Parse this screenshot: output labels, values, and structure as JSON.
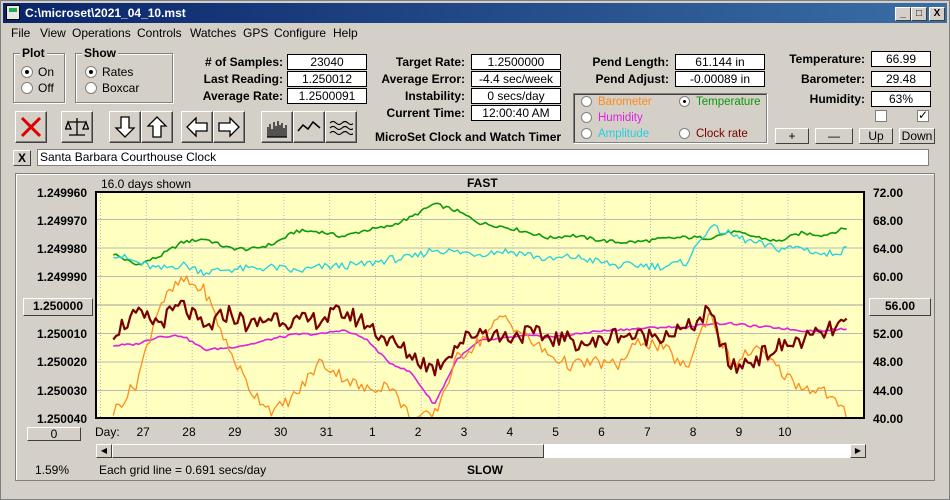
{
  "window": {
    "title": "C:\\microset\\2021_04_10.mst"
  },
  "titlebar_buttons": {
    "minimize": "_",
    "maximize": "□",
    "close": "X"
  },
  "menu": [
    "File",
    "View",
    "Operations",
    "Controls",
    "Watches",
    "GPS",
    "Configure",
    "Help"
  ],
  "plot_group": {
    "title": "Plot",
    "options": [
      "On",
      "Off"
    ],
    "selected": "On"
  },
  "show_group": {
    "title": "Show",
    "options": [
      "Rates",
      "Boxcar"
    ],
    "selected": "Rates"
  },
  "stats": {
    "samples_label": "# of Samples:",
    "samples": "23040",
    "last_reading_label": "Last Reading:",
    "last_reading": "1.250012",
    "avg_rate_label": "Average Rate:",
    "avg_rate": "1.2500091",
    "target_rate_label": "Target Rate:",
    "target_rate": "1.2500000",
    "avg_error_label": "Average Error:",
    "avg_error": "-4.4 sec/week",
    "instability_label": "Instability:",
    "instability": "0 secs/day",
    "current_time_label": "Current Time:",
    "current_time": "12:00:40 AM",
    "pend_length_label": "Pend Length:",
    "pend_length": "61.144 in",
    "pend_adjust_label": "Pend Adjust:",
    "pend_adjust": "-0.00089 in",
    "temperature_label": "Temperature:",
    "temperature": "66.99",
    "barometer_label": "Barometer:",
    "barometer": "29.48",
    "humidity_label": "Humidity:",
    "humidity": "63%"
  },
  "app_heading": "MicroSet Clock and Watch Timer",
  "params": [
    {
      "label": "Barometer",
      "color": "#ff8c1a",
      "selected": false
    },
    {
      "label": "Temperature",
      "color": "#0a9a0a",
      "selected": true
    },
    {
      "label": "Humidity",
      "color": "#e020e0",
      "selected": false
    },
    {
      "label": "Amplitude",
      "color": "#20d0e0",
      "selected": false
    },
    {
      "label": "Clock rate",
      "color": "#7a0000",
      "selected": false
    }
  ],
  "step_buttons": {
    "plus": "+",
    "minus": "—",
    "up": "Up",
    "down": "Down"
  },
  "checkboxes": {
    "left_checked": false,
    "right_checked": true
  },
  "clock_name": "Santa Barbara Courthouse Clock",
  "close_x": "X",
  "chart_labels": {
    "days_shown": "16.0 days shown",
    "top": "FAST",
    "bottom": "SLOW",
    "grid_note": "Each grid line = 0.691 secs/day",
    "day_prefix": "Day:",
    "left_button": "1.250000",
    "right_button": "56.00",
    "bottom_left_button": "0",
    "percent": "1.59%"
  },
  "chart_data": {
    "type": "line",
    "x_label": "Day",
    "x_ticks": [
      "27",
      "28",
      "29",
      "30",
      "31",
      "1",
      "2",
      "3",
      "4",
      "5",
      "6",
      "7",
      "8",
      "9",
      "10"
    ],
    "y_left_ticks": [
      "1.249960",
      "1.249970",
      "1.249980",
      "1.249990",
      "1.250000",
      "1.250010",
      "1.250020",
      "1.250030",
      "1.250040"
    ],
    "y_right_ticks": [
      "72.00",
      "68.00",
      "64.00",
      "60.00",
      "56.00",
      "52.00",
      "48.00",
      "44.00",
      "40.00"
    ],
    "ylim_left": [
      1.24996,
      1.25004
    ],
    "ylim_right": [
      40,
      72
    ],
    "y_left_inverted": true,
    "grid": true,
    "x_start_day_index": 0,
    "series": [
      {
        "name": "Temperature",
        "color": "#0a9a0a",
        "x": [
          0,
          0.5,
          1,
          1.5,
          2,
          2.5,
          3,
          3.5,
          4,
          4.5,
          5,
          5.5,
          6,
          6.5,
          7,
          7.5,
          8,
          8.5,
          9,
          9.5,
          10,
          10.5,
          11,
          11.5,
          12,
          12.5,
          13,
          13.5,
          14,
          14.5,
          15,
          15.5,
          16
        ],
        "values": [
          63.2,
          61.6,
          62.8,
          64.8,
          65.3,
          64.0,
          63.8,
          64.6,
          66.4,
          66.3,
          65.6,
          66.5,
          67.0,
          68.3,
          70.2,
          69.2,
          67.5,
          67.0,
          66.3,
          65.4,
          65.8,
          65.2,
          64.8,
          64.9,
          65.3,
          65.5,
          65.4,
          66.3,
          65.6,
          64.9,
          66.1,
          65.8,
          66.8
        ]
      },
      {
        "name": "Amplitude",
        "color": "#20d0e0",
        "x": [
          0,
          0.5,
          1,
          1.5,
          2,
          2.5,
          3,
          3.5,
          4,
          4.5,
          5,
          5.5,
          6,
          6.5,
          7,
          7.5,
          8,
          8.5,
          9,
          9.5,
          10,
          10.5,
          11,
          11.5,
          12,
          12.5,
          13,
          13.5,
          14,
          14.5,
          15,
          15.5,
          16
        ],
        "values": [
          63.2,
          62.0,
          61.0,
          61.7,
          60.6,
          61.0,
          61.1,
          61.3,
          60.7,
          61.3,
          61.5,
          61.7,
          62.4,
          62.6,
          63.8,
          63.4,
          63.2,
          63.6,
          63.2,
          62.3,
          62.8,
          62.2,
          61.5,
          61.6,
          61.4,
          62.0,
          67.0,
          65.8,
          64.7,
          63.9,
          64.1,
          63.0,
          63.8
        ]
      },
      {
        "name": "Humidity",
        "color": "#e020e0",
        "x": [
          0,
          0.5,
          1,
          1.5,
          2,
          2.5,
          3,
          3.5,
          4,
          4.5,
          5,
          5.5,
          6,
          6.5,
          7,
          7.5,
          8,
          8.5,
          9,
          9.5,
          10,
          10.5,
          11,
          11.5,
          12,
          12.5,
          13,
          13.5,
          14,
          14.5,
          15,
          15.5,
          16
        ],
        "values": [
          50.3,
          50.5,
          51.6,
          51.7,
          49.7,
          50.0,
          50.5,
          51.3,
          51.9,
          51.9,
          52.5,
          51.3,
          48.0,
          46.5,
          42.0,
          48.4,
          51.0,
          51.3,
          51.7,
          51.5,
          51.8,
          52.3,
          52.5,
          52.7,
          52.9,
          52.8,
          53.4,
          53.4,
          53.0,
          52.8,
          52.4,
          52.4,
          52.7
        ]
      },
      {
        "name": "Barometer",
        "color": "#ff8c1a",
        "x": [
          0,
          0.5,
          1,
          1.5,
          2,
          2.5,
          3,
          3.5,
          4,
          4.5,
          5,
          5.5,
          6,
          6.5,
          7,
          7.5,
          8,
          8.5,
          9,
          9.5,
          10,
          10.5,
          11,
          11.5,
          12,
          12.5,
          13,
          13.5,
          14,
          14.5,
          15,
          15.5,
          16
        ],
        "values": [
          41.0,
          45.0,
          56.0,
          59.5,
          58.0,
          50.0,
          44.0,
          41.0,
          43.5,
          48.0,
          46.0,
          44.0,
          45.0,
          40.0,
          40.5,
          48.5,
          51.0,
          54.5,
          51.5,
          49.0,
          47.5,
          48.0,
          47.5,
          51.0,
          50.0,
          47.0,
          55.0,
          47.5,
          50.0,
          47.0,
          44.5,
          44.0,
          40.5
        ]
      },
      {
        "name": "Clock rate",
        "color": "#7a0000",
        "x": [
          0,
          0.5,
          1,
          1.5,
          2,
          2.5,
          3,
          3.5,
          4,
          4.5,
          5,
          5.5,
          6,
          6.5,
          7,
          7.5,
          8,
          8.5,
          9,
          9.5,
          10,
          10.5,
          11,
          11.5,
          12,
          12.5,
          13,
          13.5,
          14,
          14.5,
          15,
          15.5,
          16
        ],
        "values": [
          52.3,
          54.5,
          53.5,
          56.0,
          52.5,
          55.0,
          53.0,
          54.5,
          53.5,
          54.0,
          55.0,
          53.5,
          51.0,
          49.0,
          47.0,
          50.5,
          52.5,
          51.5,
          52.0,
          51.5,
          51.0,
          50.5,
          52.0,
          51.5,
          52.0,
          52.5,
          55.0,
          47.0,
          48.5,
          50.0,
          51.0,
          52.0,
          53.5
        ]
      }
    ]
  }
}
